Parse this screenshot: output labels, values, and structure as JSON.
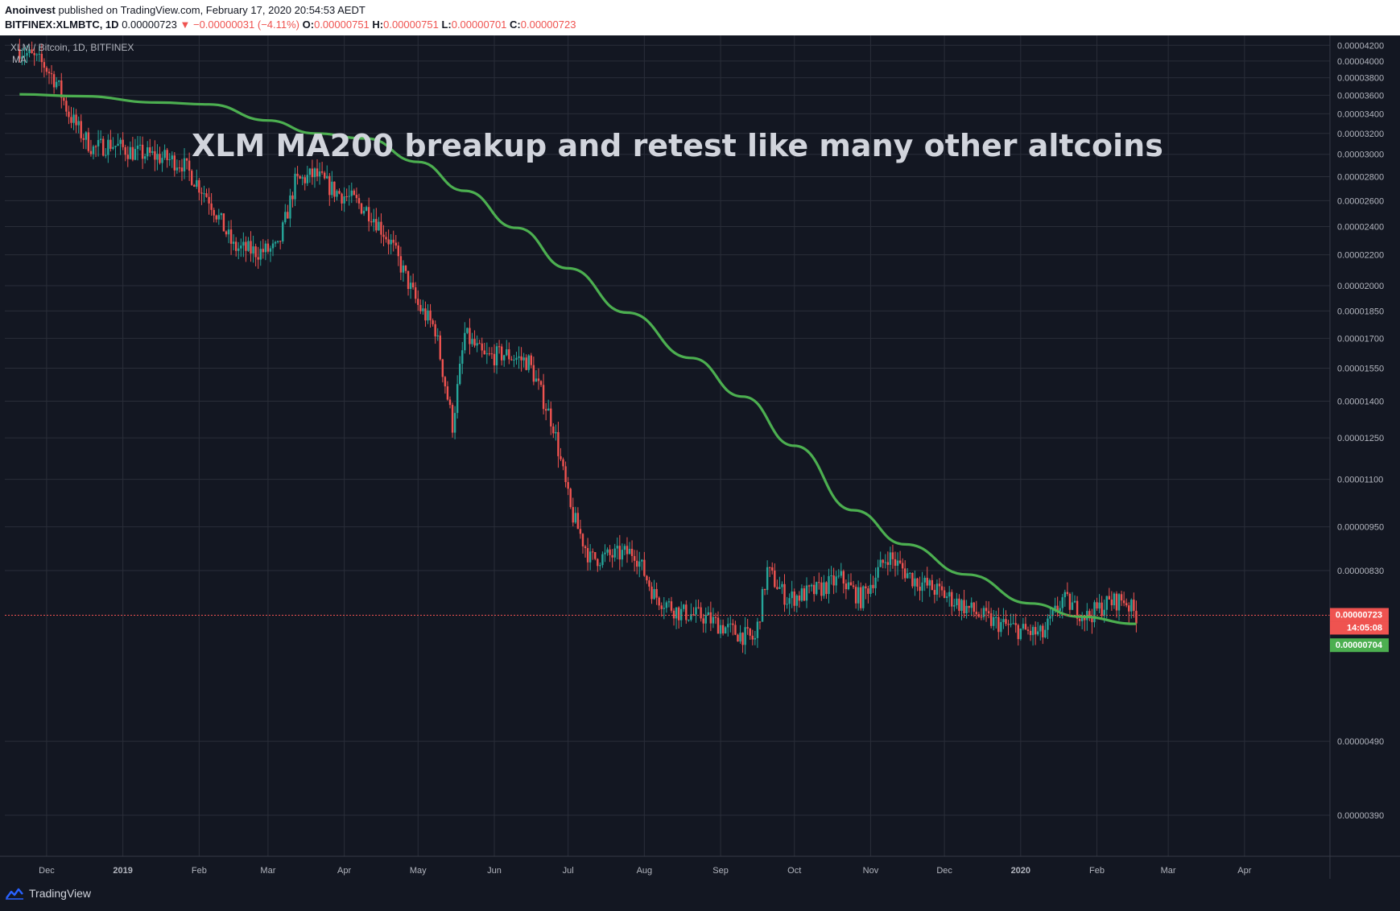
{
  "header": {
    "author": "Anoinvest",
    "published_text": "published on TradingView.com, February 17, 2020 20:54:53 AEDT",
    "symbol_line": "BITFINEX:XLMBTC, 1D",
    "last": "0.00000723",
    "change": "▼ −0.00000031 (−4.11%)",
    "open_label": "O:",
    "open": "0.00000751",
    "high_label": "H:",
    "high": "0.00000751",
    "low_label": "L:",
    "low": "0.00000701",
    "close_label": "C:",
    "close": "0.00000723"
  },
  "legend": {
    "series_title": "XLM / Bitcoin, 1D, BITFINEX",
    "indicator": "MA"
  },
  "footer": {
    "brand": "TradingView"
  },
  "price_tags": {
    "last_price": "0.00000723",
    "countdown": "14:05:08",
    "ma_value": "0.00000704"
  },
  "colors": {
    "background": "#131722",
    "grid": "#2a2e39",
    "up": "#26a69a",
    "down": "#ef5350",
    "ma": "#4caf50",
    "text": "#b2b5be",
    "annotation": "#d1d4dc"
  },
  "chart_data": {
    "type": "line",
    "title": "XLM MA200 breakup and retest like many other altcoins",
    "scale": "log",
    "y_ticks": [
      "0.00004200",
      "0.00004000",
      "0.00003800",
      "0.00003600",
      "0.00003400",
      "0.00003200",
      "0.00003000",
      "0.00002800",
      "0.00002600",
      "0.00002400",
      "0.00002200",
      "0.00002000",
      "0.00001850",
      "0.00001700",
      "0.00001550",
      "0.00001400",
      "0.00001250",
      "0.00001100",
      "0.00000950",
      "0.00000830",
      "0.00000490",
      "0.00000390"
    ],
    "x_ticks": [
      "Dec",
      "2019",
      "Feb",
      "Mar",
      "Apr",
      "May",
      "Jun",
      "Jul",
      "Aug",
      "Sep",
      "Oct",
      "Nov",
      "Dec",
      "2020",
      "Feb",
      "Mar",
      "Apr"
    ],
    "series": [
      {
        "name": "XLM / Bitcoin",
        "x": [
          "2018-11-20",
          "2018-11-25",
          "2018-11-30",
          "2018-12-05",
          "2018-12-10",
          "2018-12-15",
          "2018-12-20",
          "2018-12-27",
          "2019-01-05",
          "2019-01-15",
          "2019-01-25",
          "2019-02-05",
          "2019-02-15",
          "2019-02-25",
          "2019-03-05",
          "2019-03-12",
          "2019-03-20",
          "2019-03-28",
          "2019-04-05",
          "2019-04-12",
          "2019-04-20",
          "2019-05-01",
          "2019-05-08",
          "2019-05-15",
          "2019-05-20",
          "2019-05-28",
          "2019-06-05",
          "2019-06-15",
          "2019-06-25",
          "2019-07-02",
          "2019-07-10",
          "2019-07-20",
          "2019-07-28",
          "2019-08-05",
          "2019-08-15",
          "2019-08-25",
          "2019-09-05",
          "2019-09-15",
          "2019-09-20",
          "2019-09-28",
          "2019-10-10",
          "2019-10-20",
          "2019-10-28",
          "2019-11-08",
          "2019-11-18",
          "2019-11-28",
          "2019-12-10",
          "2019-12-20",
          "2020-01-01",
          "2020-01-10",
          "2020-01-18",
          "2020-01-28",
          "2020-02-05",
          "2020-02-12",
          "2020-02-17"
        ],
        "values": [
          4.15e-05,
          4.05e-05,
          3.95e-05,
          3.75e-05,
          3.4e-05,
          3.2e-05,
          3.05e-05,
          3.1e-05,
          3.02e-05,
          2.98e-05,
          2.92e-05,
          2.62e-05,
          2.25e-05,
          2.22e-05,
          2.24e-05,
          2.75e-05,
          2.82e-05,
          2.68e-05,
          2.6e-05,
          2.5e-05,
          2.28e-05,
          1.88e-05,
          1.75e-05,
          1.3e-05,
          1.72e-05,
          1.6e-05,
          1.62e-05,
          1.58e-05,
          1.3e-05,
          1e-05,
          8.6e-06,
          8.7e-06,
          8.8e-06,
          7.7e-06,
          7.3e-06,
          7.2e-06,
          6.9e-06,
          6.7e-06,
          8.3e-06,
          7.6e-06,
          7.8e-06,
          8.1e-06,
          7.6e-06,
          8.7e-06,
          8.1e-06,
          7.8e-06,
          7.4e-06,
          7.1e-06,
          6.9e-06,
          6.8e-06,
          7.6e-06,
          7.2e-06,
          7.5e-06,
          7.6e-06,
          7.23e-06
        ]
      },
      {
        "name": "MA",
        "x": [
          "2018-11-20",
          "2018-12-15",
          "2019-01-15",
          "2019-02-05",
          "2019-03-01",
          "2019-03-20",
          "2019-04-10",
          "2019-05-01",
          "2019-05-20",
          "2019-06-10",
          "2019-07-01",
          "2019-07-25",
          "2019-08-20",
          "2019-09-10",
          "2019-10-01",
          "2019-10-25",
          "2019-11-15",
          "2019-12-10",
          "2020-01-05",
          "2020-01-25",
          "2020-02-17"
        ],
        "values": [
          3.61e-05,
          3.59e-05,
          3.52e-05,
          3.5e-05,
          3.33e-05,
          3.2e-05,
          3.15e-05,
          2.93e-05,
          2.68e-05,
          2.39e-05,
          2.11e-05,
          1.84e-05,
          1.6e-05,
          1.42e-05,
          1.22e-05,
          1e-05,
          9e-06,
          8.2e-06,
          7.5e-06,
          7.2e-06,
          7.04e-06
        ]
      }
    ]
  }
}
